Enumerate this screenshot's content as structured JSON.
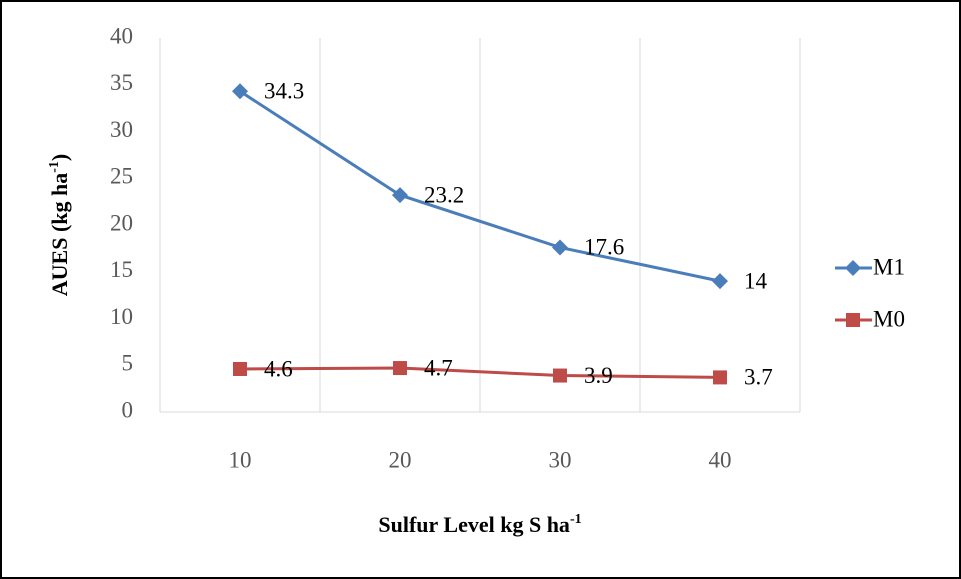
{
  "chart_data": {
    "type": "line",
    "y_label": [
      "AUES (kg ha",
      "-1",
      ")"
    ],
    "x_label": [
      "Sulfur Level kg S  ha",
      "-1"
    ],
    "categories": [
      "10",
      "20",
      "30",
      "40"
    ],
    "series": [
      {
        "name": "M1",
        "color": "#4a7ebb",
        "marker": "diamond",
        "values": [
          34.3,
          23.2,
          17.6,
          14
        ]
      },
      {
        "name": "M0",
        "color": "#be4b48",
        "marker": "square",
        "values": [
          4.6,
          4.7,
          3.9,
          3.7
        ]
      }
    ],
    "ylim": [
      0,
      40
    ],
    "yticks": [
      0,
      5,
      10,
      15,
      20,
      25,
      30,
      35,
      40
    ],
    "legend": "right"
  }
}
